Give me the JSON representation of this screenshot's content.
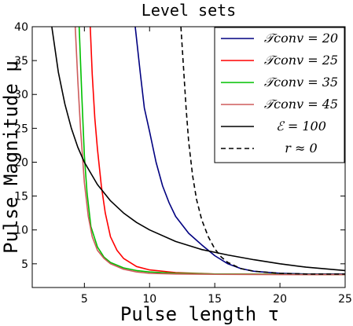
{
  "chart_data": {
    "type": "line",
    "title": "Level sets",
    "xlabel": "Pulse length τ",
    "ylabel": "Pulse Magnitude μ",
    "xlim": [
      1,
      25
    ],
    "ylim": [
      1.5,
      40
    ],
    "xticks": [
      5,
      10,
      15,
      20,
      25
    ],
    "yticks": [
      5,
      10,
      15,
      20,
      25,
      30,
      35,
      40
    ],
    "grid": false,
    "legend_position": "top-right",
    "series": [
      {
        "name": "𝒯conv = 20",
        "color": "#000080",
        "dash": "solid",
        "x": [
          8.9,
          9.3,
          9.6,
          10.0,
          10.5,
          11.0,
          11.5,
          12.0,
          13.0,
          14.0,
          15.0,
          16.0,
          17.0,
          18.0,
          20.0,
          22.0,
          25.0
        ],
        "y": [
          40.0,
          33.0,
          28.0,
          24.5,
          20.0,
          16.5,
          14.0,
          12.0,
          9.5,
          7.8,
          6.2,
          5.0,
          4.3,
          3.9,
          3.6,
          3.5,
          3.5
        ]
      },
      {
        "name": "𝒯conv = 25",
        "color": "#ff0000",
        "dash": "solid",
        "x": [
          5.45,
          5.6,
          5.8,
          6.0,
          6.3,
          6.6,
          7.0,
          7.5,
          8.0,
          9.0,
          10.0,
          12.0,
          15.0,
          20.0,
          25.0
        ],
        "y": [
          40.0,
          33.0,
          26.5,
          22.0,
          16.5,
          12.5,
          9.0,
          7.0,
          5.8,
          4.6,
          4.1,
          3.7,
          3.5,
          3.45,
          3.4
        ]
      },
      {
        "name": "𝒯conv = 35",
        "color": "#00c000",
        "dash": "solid",
        "x": [
          4.6,
          4.8,
          5.0,
          5.2,
          5.5,
          6.0,
          6.5,
          7.0,
          8.0,
          9.0,
          10.0,
          12.0,
          15.0,
          20.0,
          25.0
        ],
        "y": [
          40.0,
          30.0,
          21.0,
          15.5,
          10.5,
          7.5,
          6.0,
          5.2,
          4.4,
          4.0,
          3.8,
          3.6,
          3.5,
          3.45,
          3.4
        ]
      },
      {
        "name": "𝒯conv = 45",
        "color": "#cd5c5c",
        "dash": "solid",
        "x": [
          4.3,
          4.5,
          4.7,
          5.0,
          5.3,
          5.6,
          6.0,
          6.5,
          7.0,
          8.0,
          9.0,
          10.0,
          12.0,
          15.0,
          20.0,
          25.0
        ],
        "y": [
          40.0,
          32.0,
          25.0,
          17.0,
          12.0,
          9.0,
          7.0,
          5.8,
          5.0,
          4.2,
          3.8,
          3.6,
          3.5,
          3.45,
          3.4,
          3.4
        ]
      },
      {
        "name": "ℰ = 100",
        "color": "#000000",
        "dash": "solid",
        "x": [
          2.5,
          3.0,
          3.5,
          4.0,
          4.5,
          5.0,
          6.0,
          7.0,
          8.0,
          9.0,
          10.0,
          12.0,
          14.0,
          16.0,
          18.0,
          20.0,
          22.0,
          25.0
        ],
        "y": [
          40.0,
          33.3,
          28.6,
          25.0,
          22.2,
          20.0,
          16.7,
          14.3,
          12.5,
          11.1,
          10.0,
          8.3,
          7.1,
          6.3,
          5.6,
          5.0,
          4.5,
          4.0
        ]
      },
      {
        "name": "r ≈ 0",
        "color": "#000000",
        "dash": "dashed",
        "x": [
          12.4,
          12.6,
          12.8,
          13.0,
          13.3,
          13.6,
          14.0,
          14.5,
          15.0,
          15.5,
          16.0,
          17.0,
          18.0,
          20.0,
          22.0,
          25.0
        ],
        "y": [
          40.0,
          34.0,
          28.0,
          23.0,
          18.0,
          14.5,
          11.5,
          9.0,
          7.2,
          6.0,
          5.2,
          4.3,
          3.9,
          3.6,
          3.5,
          3.5
        ]
      }
    ]
  }
}
